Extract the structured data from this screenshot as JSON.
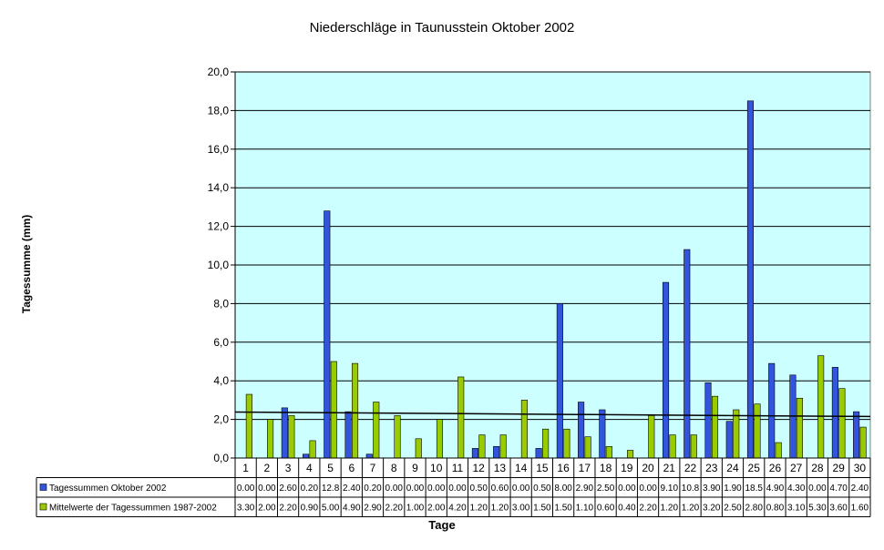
{
  "chart_data": {
    "type": "bar",
    "title": "Niederschläge in Taunusstein Oktober 2002",
    "xlabel": "Tage",
    "ylabel": "Tagessumme (mm)",
    "ylim": [
      0,
      20
    ],
    "ytick_labels": [
      "0,0",
      "2,0",
      "4,0",
      "6,0",
      "8,0",
      "10,0",
      "12,0",
      "14,0",
      "16,0",
      "18,0",
      "20,0"
    ],
    "categories": [
      "1",
      "2",
      "3",
      "4",
      "5",
      "6",
      "7",
      "8",
      "9",
      "10",
      "11",
      "12",
      "13",
      "14",
      "15",
      "16",
      "17",
      "18",
      "19",
      "20",
      "21",
      "22",
      "23",
      "24",
      "25",
      "26",
      "27",
      "28",
      "29",
      "30"
    ],
    "series": [
      {
        "name": "Tagessummen Oktober 2002",
        "color": "#3355dd",
        "values": [
          0.0,
          0.0,
          2.6,
          0.2,
          12.8,
          2.4,
          0.2,
          0.0,
          0.0,
          0.0,
          0.0,
          0.5,
          0.6,
          0.0,
          0.5,
          8.0,
          2.9,
          2.5,
          0.0,
          0.0,
          9.1,
          10.8,
          3.9,
          1.9,
          18.5,
          4.9,
          4.3,
          0.0,
          4.7,
          2.4
        ],
        "table_labels": [
          "0.00",
          "0.00",
          "2.60",
          "0.20",
          "12.8",
          "2.40",
          "0.20",
          "0.00",
          "0.00",
          "0.00",
          "0.00",
          "0.50",
          "0.60",
          "0.00",
          "0.50",
          "8.00",
          "2.90",
          "2.50",
          "0.00",
          "0.00",
          "9.10",
          "10.8",
          "3.90",
          "1.90",
          "18.5",
          "4.90",
          "4.30",
          "0.00",
          "4.70",
          "2.40"
        ]
      },
      {
        "name": "Mittelwerte der Tagessummen 1987-2002",
        "color": "#99cc00",
        "values": [
          3.3,
          2.0,
          2.2,
          0.9,
          5.0,
          4.9,
          2.9,
          2.2,
          1.0,
          2.0,
          4.2,
          1.2,
          1.2,
          3.0,
          1.5,
          1.5,
          1.1,
          0.6,
          0.4,
          2.2,
          1.2,
          1.2,
          3.2,
          2.5,
          2.8,
          0.8,
          3.1,
          5.3,
          3.6,
          1.6
        ],
        "table_labels": [
          "3.30",
          "2.00",
          "2.20",
          "0.90",
          "5.00",
          "4.90",
          "2.90",
          "2.20",
          "1.00",
          "2.00",
          "4.20",
          "1.20",
          "1.20",
          "3.00",
          "1.50",
          "1.50",
          "1.10",
          "0.60",
          "0.40",
          "2.20",
          "1.20",
          "1.20",
          "3.20",
          "2.50",
          "2.80",
          "0.80",
          "3.10",
          "5.30",
          "3.60",
          "1.60"
        ]
      }
    ],
    "trendline": {
      "start": 2.38,
      "end": 2.15,
      "color": "#000000"
    },
    "plot_background": "#ccffff",
    "grid": true,
    "legend": "data-table"
  }
}
